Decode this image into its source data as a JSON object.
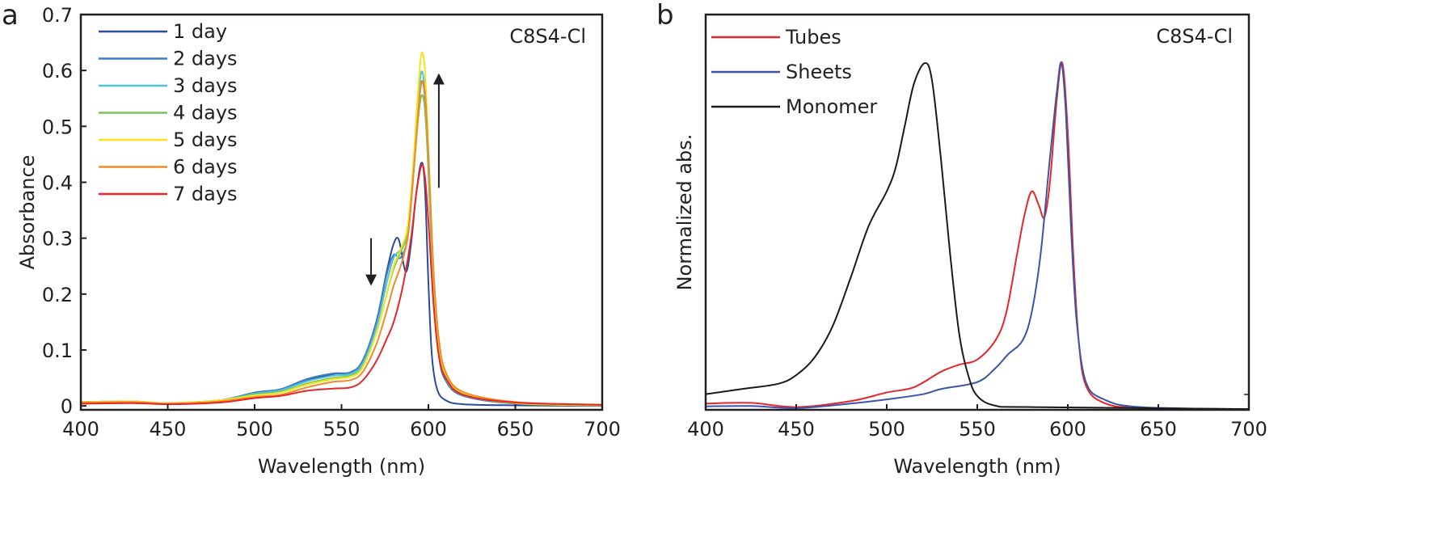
{
  "chart_data": [
    {
      "type": "line",
      "panel_label": "a",
      "annotation": "C8S4-Cl",
      "xlabel": "Wavelength (nm)",
      "ylabel": "Absorbance",
      "xlim": [
        400,
        700
      ],
      "ylim": [
        -0.007,
        0.7
      ],
      "xticks": [
        "400",
        "450",
        "500",
        "550",
        "600",
        "650",
        "700"
      ],
      "yticks": [
        "0",
        "0.1",
        "0.2",
        "0.3",
        "0.4",
        "0.5",
        "0.6",
        "0.7"
      ],
      "legend_position": "top-left",
      "series": [
        {
          "name": "1 day",
          "color": "#2a4b9b",
          "x": [
            400,
            430,
            450,
            480,
            500,
            515,
            530,
            545,
            555,
            562,
            570,
            576,
            580,
            583,
            587,
            590,
            593,
            596,
            598,
            600,
            602,
            605,
            610,
            620,
            650,
            700
          ],
          "y": [
            0.006,
            0.007,
            0.004,
            0.01,
            0.022,
            0.028,
            0.045,
            0.057,
            0.06,
            0.08,
            0.15,
            0.24,
            0.29,
            0.297,
            0.24,
            0.29,
            0.38,
            0.435,
            0.39,
            0.22,
            0.09,
            0.03,
            0.01,
            0.003,
            0.001,
            0
          ]
        },
        {
          "name": "2 days",
          "color": "#3f7dc6",
          "x": [
            400,
            430,
            450,
            480,
            500,
            515,
            530,
            545,
            555,
            562,
            570,
            576,
            580,
            584,
            588,
            591,
            594,
            596,
            598,
            600,
            603,
            606,
            610,
            620,
            650,
            700
          ],
          "y": [
            0.007,
            0.008,
            0.005,
            0.01,
            0.024,
            0.03,
            0.048,
            0.058,
            0.06,
            0.08,
            0.15,
            0.235,
            0.27,
            0.265,
            0.3,
            0.4,
            0.52,
            0.58,
            0.55,
            0.42,
            0.2,
            0.09,
            0.045,
            0.018,
            0.004,
            0.001
          ]
        },
        {
          "name": "3 days",
          "color": "#4fc3d9",
          "x": [
            400,
            430,
            450,
            480,
            500,
            515,
            530,
            545,
            555,
            562,
            570,
            576,
            580,
            584,
            588,
            591,
            594,
            596,
            598,
            600,
            603,
            606,
            610,
            620,
            650,
            700
          ],
          "y": [
            0.007,
            0.008,
            0.005,
            0.01,
            0.022,
            0.028,
            0.044,
            0.054,
            0.057,
            0.075,
            0.14,
            0.22,
            0.265,
            0.28,
            0.31,
            0.41,
            0.54,
            0.598,
            0.56,
            0.43,
            0.21,
            0.1,
            0.05,
            0.02,
            0.005,
            0.001
          ]
        },
        {
          "name": "4 days",
          "color": "#7dc35a",
          "x": [
            400,
            430,
            450,
            480,
            500,
            515,
            530,
            545,
            555,
            562,
            570,
            576,
            580,
            584,
            588,
            591,
            594,
            596,
            598,
            600,
            603,
            606,
            610,
            620,
            650,
            700
          ],
          "y": [
            0.007,
            0.008,
            0.005,
            0.01,
            0.02,
            0.025,
            0.04,
            0.05,
            0.054,
            0.07,
            0.13,
            0.2,
            0.245,
            0.275,
            0.31,
            0.4,
            0.51,
            0.555,
            0.53,
            0.42,
            0.21,
            0.1,
            0.05,
            0.02,
            0.005,
            0.001
          ]
        },
        {
          "name": "5 days",
          "color": "#f2e51a",
          "x": [
            400,
            430,
            450,
            480,
            500,
            515,
            530,
            545,
            555,
            562,
            570,
            576,
            580,
            584,
            588,
            591,
            594,
            596,
            598,
            600,
            603,
            606,
            610,
            620,
            650,
            700
          ],
          "y": [
            0.007,
            0.008,
            0.005,
            0.01,
            0.019,
            0.024,
            0.038,
            0.048,
            0.052,
            0.068,
            0.13,
            0.2,
            0.25,
            0.28,
            0.32,
            0.42,
            0.56,
            0.63,
            0.6,
            0.46,
            0.23,
            0.11,
            0.055,
            0.022,
            0.005,
            0.001
          ]
        },
        {
          "name": "6 days",
          "color": "#f08a2a",
          "x": [
            400,
            430,
            450,
            480,
            500,
            515,
            530,
            545,
            555,
            562,
            570,
            576,
            580,
            584,
            588,
            591,
            594,
            596,
            598,
            600,
            603,
            606,
            610,
            620,
            650,
            700
          ],
          "y": [
            0.006,
            0.007,
            0.004,
            0.008,
            0.016,
            0.02,
            0.033,
            0.043,
            0.046,
            0.06,
            0.11,
            0.17,
            0.215,
            0.25,
            0.3,
            0.4,
            0.52,
            0.578,
            0.56,
            0.45,
            0.24,
            0.12,
            0.06,
            0.025,
            0.007,
            0.002
          ]
        },
        {
          "name": "7 days",
          "color": "#e8262a",
          "x": [
            400,
            430,
            450,
            480,
            500,
            515,
            530,
            545,
            555,
            562,
            570,
            576,
            580,
            585,
            590,
            593,
            596,
            598,
            600,
            603,
            606,
            610,
            620,
            650,
            700
          ],
          "y": [
            0.004,
            0.005,
            0.003,
            0.006,
            0.014,
            0.018,
            0.027,
            0.031,
            0.033,
            0.045,
            0.08,
            0.12,
            0.15,
            0.21,
            0.3,
            0.38,
            0.43,
            0.41,
            0.33,
            0.18,
            0.09,
            0.05,
            0.02,
            0.006,
            0.002
          ]
        }
      ]
    },
    {
      "type": "line",
      "panel_label": "b",
      "annotation": "C8S4-Cl",
      "xlabel": "Wavelength (nm)",
      "ylabel": "Normalized abs.",
      "xlim": [
        400,
        700
      ],
      "ylim": [
        0,
        1.14
      ],
      "xticks": [
        "400",
        "450",
        "500",
        "550",
        "600",
        "650",
        "700"
      ],
      "legend_position": "top-left",
      "series": [
        {
          "name": "Tubes",
          "color": "#e8262a",
          "x": [
            400,
            425,
            450,
            480,
            500,
            515,
            530,
            540,
            550,
            560,
            566,
            572,
            576,
            580,
            584,
            587,
            590,
            594,
            597,
            600,
            603,
            606,
            610,
            620,
            640,
            700
          ],
          "y": [
            0.018,
            0.02,
            0.008,
            0.025,
            0.05,
            0.065,
            0.11,
            0.13,
            0.145,
            0.2,
            0.28,
            0.45,
            0.56,
            0.63,
            0.59,
            0.555,
            0.65,
            0.9,
            1.0,
            0.8,
            0.45,
            0.2,
            0.07,
            0.02,
            0.005,
            0
          ]
        },
        {
          "name": "Sheets",
          "color": "#3a55a8",
          "x": [
            400,
            425,
            450,
            480,
            500,
            520,
            530,
            550,
            560,
            567,
            575,
            580,
            585,
            590,
            594,
            596.5,
            599,
            602,
            605,
            610,
            620,
            640,
            700
          ],
          "y": [
            0.01,
            0.011,
            0.005,
            0.018,
            0.03,
            0.045,
            0.06,
            0.08,
            0.12,
            0.16,
            0.2,
            0.28,
            0.45,
            0.72,
            0.92,
            1.0,
            0.85,
            0.5,
            0.25,
            0.08,
            0.03,
            0.008,
            0.002
          ]
        },
        {
          "name": "Monomer",
          "color": "#1a1a1a",
          "x": [
            400,
            420,
            440,
            450,
            460,
            470,
            480,
            490,
            500,
            505,
            510,
            515,
            521,
            525,
            530,
            535,
            540,
            545,
            550,
            560,
            580,
            700
          ],
          "y": [
            0.045,
            0.06,
            0.075,
            0.1,
            0.15,
            0.24,
            0.38,
            0.53,
            0.63,
            0.7,
            0.82,
            0.94,
            1.0,
            0.95,
            0.72,
            0.45,
            0.22,
            0.1,
            0.04,
            0.012,
            0.008,
            0.002
          ]
        }
      ]
    }
  ]
}
